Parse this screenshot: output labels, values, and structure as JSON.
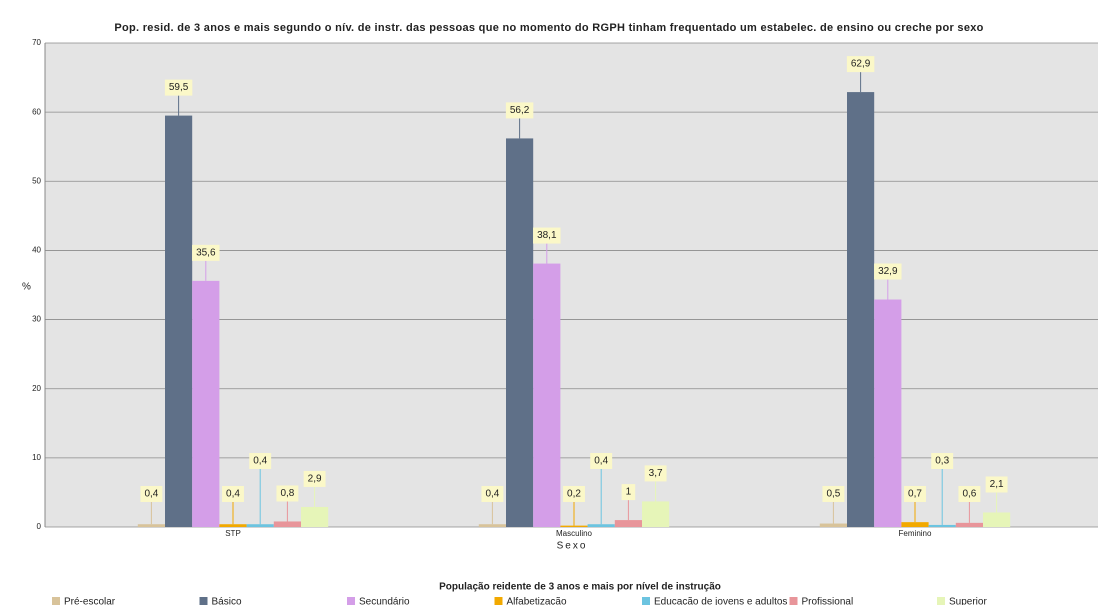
{
  "chart_data": {
    "type": "bar",
    "title": "Pop. resid. de 3 anos e mais segundo o nív. de instr. das pessoas que no momento do RGPH tinham  frequentado um estabelec. de ensino ou creche por sexo",
    "x_label": "Sexo",
    "y_label": "%",
    "legend_title": "População reidente de 3 anos e mais por nível de instrução",
    "categories": [
      "STP",
      "Masculino",
      "Feminino"
    ],
    "ylim": [
      0,
      70
    ],
    "yticks": [
      0,
      10,
      20,
      30,
      40,
      50,
      60,
      70
    ],
    "grid": true,
    "series": [
      {
        "name": "Pré-escolar",
        "color": "#d8c39a",
        "values": [
          0.4,
          0.4,
          0.5
        ],
        "value_labels": [
          "0,4",
          "0,4",
          "0,5"
        ]
      },
      {
        "name": "Básico",
        "color": "#5f7088",
        "values": [
          59.5,
          56.2,
          62.9
        ],
        "value_labels": [
          "59,5",
          "56,2",
          "62,9"
        ]
      },
      {
        "name": "Secundário",
        "color": "#d49ee8",
        "values": [
          35.6,
          38.1,
          32.9
        ],
        "value_labels": [
          "35,6",
          "38,1",
          "32,9"
        ]
      },
      {
        "name": "Alfabetização",
        "color": "#f2a900",
        "values": [
          0.4,
          0.2,
          0.7
        ],
        "value_labels": [
          "0,4",
          "0,2",
          "0,7"
        ]
      },
      {
        "name": "Educação de jovens e adultos",
        "color": "#6cc4e0",
        "values": [
          0.4,
          0.4,
          0.3
        ],
        "value_labels": [
          "0,4",
          "0,4",
          "0,3"
        ]
      },
      {
        "name": "Profissional",
        "color": "#e8959a",
        "values": [
          0.8,
          1,
          0.6
        ],
        "value_labels": [
          "0,8",
          "1",
          "0,6"
        ]
      },
      {
        "name": "Superior",
        "color": "#e6f5b8",
        "values": [
          2.9,
          3.7,
          2.1
        ],
        "value_labels": [
          "2,9",
          "3,7",
          "2,1"
        ]
      }
    ]
  }
}
